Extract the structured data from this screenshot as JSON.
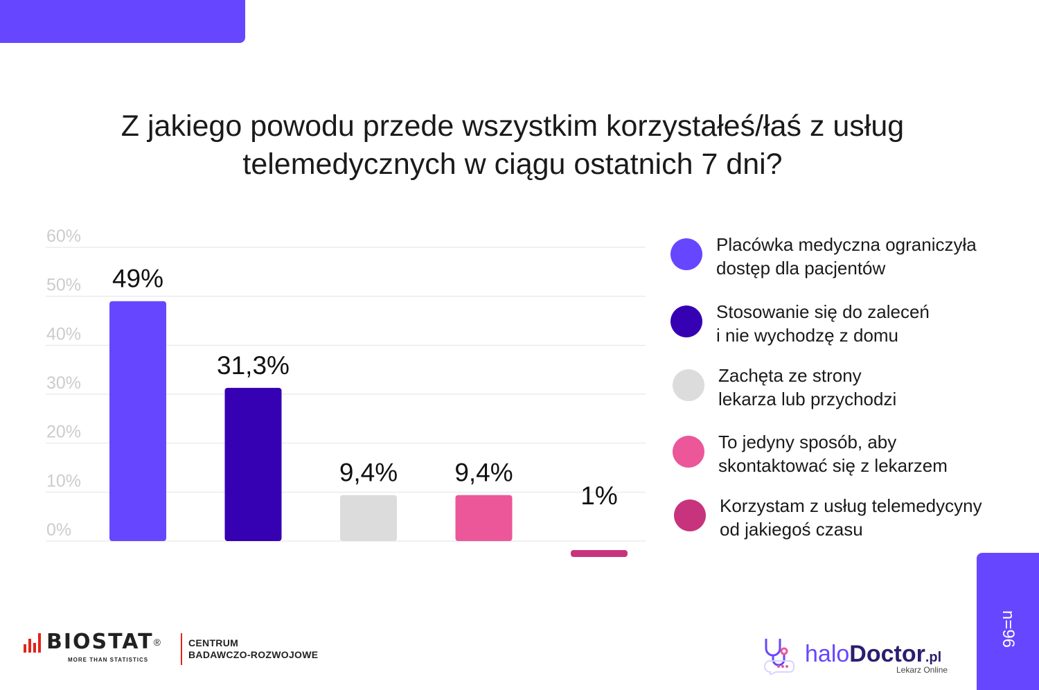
{
  "header": {
    "title_line1": "Z jakiego powodu przede wszystkim korzystałeś/łaś z usług",
    "title_line2": "telemedycznych w ciągu ostatnich 7 dni?"
  },
  "chart_data": {
    "type": "bar",
    "title": "Z jakiego powodu przede wszystkim korzystałeś/łaś z usług telemedycznych w ciągu ostatnich 7 dni?",
    "categories": [
      "Placówka medyczna ograniczyła dostęp dla pacjentów",
      "Stosowanie się do zaleceń i nie wychodzę z domu",
      "Zachęta ze strony lekarza lub przychodzi",
      "To jedyny sposób, aby skontaktować się z lekarzem",
      "Korzystam z usług telemedycyny od jakiegoś czasu"
    ],
    "values": [
      49,
      31.3,
      9.4,
      9.4,
      1
    ],
    "data_labels": [
      "49%",
      "31,3%",
      "9,4%",
      "9,4%",
      "1%"
    ],
    "colors": [
      "#6647ff",
      "#3600b3",
      "#dcdcdc",
      "#eb5799",
      "#c8337d"
    ],
    "ylim": [
      0,
      60
    ],
    "yticks": [
      0,
      10,
      20,
      30,
      40,
      50,
      60
    ],
    "ytick_labels": [
      "0%",
      "10%",
      "20%",
      "30%",
      "40%",
      "50%",
      "60%"
    ],
    "xlabel": "",
    "ylabel": "",
    "grid": true,
    "legend_position": "right"
  },
  "legend": [
    {
      "line1": "Placówka medyczna ograniczyła",
      "line2": "dostęp dla pacjentów",
      "color": "#6647ff"
    },
    {
      "line1": "Stosowanie się do zaleceń",
      "line2": "i nie wychodzę z domu",
      "color": "#3600b3"
    },
    {
      "line1": "Zachęta ze strony",
      "line2": "lekarza lub przychodzi",
      "color": "#dcdcdc"
    },
    {
      "line1": "To jedyny sposób, aby",
      "line2": "skontaktować się z lekarzem",
      "color": "#eb5799"
    },
    {
      "line1": "Korzystam z usług telemedycyny",
      "line2": "od jakiegoś czasu",
      "color": "#c8337d"
    }
  ],
  "sample": {
    "label": "n=96"
  },
  "footer": {
    "biostat_name": "BIOSTAT",
    "biostat_reg": "®",
    "biostat_tagline": "MORE THAN STATISTICS",
    "centrum_line1": "CENTRUM",
    "centrum_line2": "BADAWCZO-ROZWOJOWE",
    "halo_prefix": "halo",
    "halo_brand": "Doctor",
    "halo_suffix": ".pl",
    "halo_tagline": "Lekarz Online"
  },
  "colors": {
    "accent": "#6647ff",
    "dark": "#3600b3",
    "grid": "#e2e2e2",
    "axis_text": "#cccccc"
  }
}
